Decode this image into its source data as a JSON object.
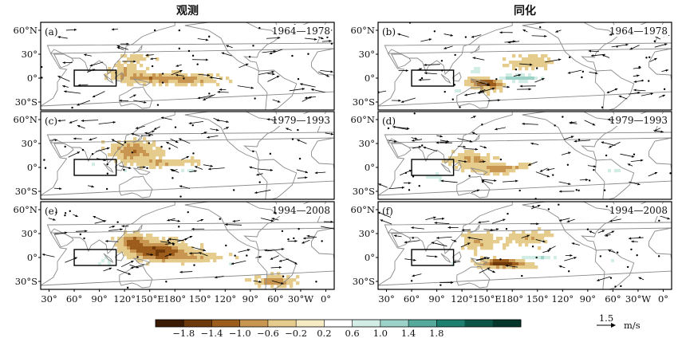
{
  "columns": [
    {
      "title": "观测"
    },
    {
      "title": "同化"
    }
  ],
  "panels": [
    {
      "tag": "(a)",
      "period": "1964—1978",
      "col": 0,
      "row": 0
    },
    {
      "tag": "(b)",
      "period": "1964—1978",
      "col": 1,
      "row": 0
    },
    {
      "tag": "(c)",
      "period": "1979—1993",
      "col": 0,
      "row": 1
    },
    {
      "tag": "(d)",
      "period": "1979—1993",
      "col": 1,
      "row": 1
    },
    {
      "tag": "(e)",
      "period": "1994—2008",
      "col": 0,
      "row": 2
    },
    {
      "tag": "(f)",
      "period": "1994—2008",
      "col": 1,
      "row": 2
    }
  ],
  "lat_ticks": [
    "60°N",
    "30°",
    "0°",
    "30°S"
  ],
  "lon_ticks": [
    "30°",
    "60°",
    "90°",
    "120°",
    "150°E",
    "180°",
    "150°",
    "120°",
    "90°",
    "60°",
    "30°W",
    "0°"
  ],
  "colorbar": {
    "labels": [
      "−1.8",
      "−1.4",
      "−1.0",
      "−0.6",
      "−0.2",
      "0.2",
      "0.6",
      "1.0",
      "1.4",
      "1.8"
    ],
    "colors": [
      "#3b1a04",
      "#6e3a0c",
      "#9c5d1c",
      "#c89650",
      "#e6cc8c",
      "#f7ebc4",
      "#ffffff",
      "#d2ece6",
      "#9dd2c8",
      "#55aa9c",
      "#1d7f70",
      "#0a5546",
      "#04362c"
    ]
  },
  "vector_ref": {
    "value": "1.5",
    "unit": "m/s"
  },
  "chart_data": {
    "type": "heatmap",
    "description_of_panels": "6 map panels: rows = periods 1964—1978, 1979—1993, 1994—2008; columns = 观测, 同化",
    "shading_range": [
      -1.8,
      1.8
    ],
    "contour_levels": [
      -1.8,
      -1.4,
      -1.0,
      -0.6,
      -0.2,
      0.2,
      0.6,
      1.0,
      1.4,
      1.8
    ],
    "lon_range_deg_east": [
      20,
      370
    ],
    "lat_range": [
      -40,
      70
    ],
    "box_region": {
      "lon": [
        60,
        110
      ],
      "lat": [
        -10,
        10
      ]
    }
  }
}
